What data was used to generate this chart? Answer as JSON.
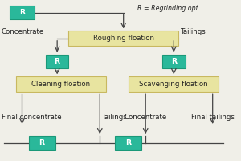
{
  "bg_color": "#f0efe8",
  "box_yellow_face": "#e8e4a0",
  "box_yellow_edge": "#c8b860",
  "box_teal_face": "#2ab89a",
  "box_teal_edge": "#1a9878",
  "arrow_color": "#444444",
  "text_color": "#222222",
  "legend_text": "R = Regrinding opt",
  "roughing_label": "Roughing floation",
  "cleaning_label": "Cleaning floation",
  "scavenging_label": "Scavenging floation",
  "concentrate_left": "Concentrate",
  "tailings_right": "Tailings",
  "final_concentrate": "Final concentrate",
  "tailings_mid": "Tailings",
  "concentrate_mid": "Concentrate",
  "final_tailings": "Final tailings",
  "font_size": 6.2
}
